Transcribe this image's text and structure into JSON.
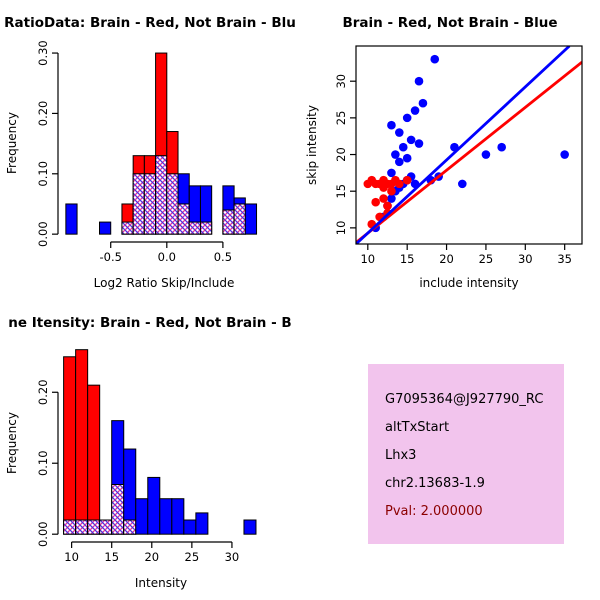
{
  "page": {
    "background": "#ffffff"
  },
  "colors": {
    "brain_red": "#FF0000",
    "not_brain_blue": "#0000FF",
    "axis_black": "#000000",
    "info_box_background": "#F2C4ED",
    "pval_dark_red": "#8B0000"
  },
  "chart_data": [
    {
      "id": "hist-log2ratio",
      "type": "bar",
      "subtype": "overlaid-histogram",
      "title": "RatioData: Brain - Red, Not Brain - Blu",
      "xlabel": "Log2 Ratio Skip/Include",
      "ylabel": "Frequency",
      "xlim": [
        -0.97,
        0.92
      ],
      "ylim": [
        -0.013,
        0.315
      ],
      "xticks": [
        -0.5,
        0.0,
        0.5
      ],
      "xtick_labels": [
        "-0.5",
        "0.0",
        "0.5"
      ],
      "yticks": [
        0.0,
        0.1,
        0.2,
        0.3
      ],
      "ytick_labels": [
        "0.00",
        "0.10",
        "0.20",
        "0.30"
      ],
      "grid": false,
      "legend": "none",
      "bin_start": -0.9,
      "bin_width": 0.1,
      "series": [
        {
          "name": "Brain (red)",
          "color": "#FF0000",
          "values": [
            0,
            0,
            0,
            0,
            0,
            0.05,
            0.13,
            0.13,
            0.3,
            0.17,
            0.05,
            0.02,
            0.02,
            0,
            0.04,
            0.05,
            0,
            0
          ]
        },
        {
          "name": "Not Brain (blue)",
          "color": "#0000FF",
          "values": [
            0.05,
            0,
            0,
            0.02,
            0,
            0.02,
            0.1,
            0.1,
            0.13,
            0.1,
            0.1,
            0.08,
            0.08,
            0,
            0.08,
            0.06,
            0.05,
            0
          ]
        }
      ]
    },
    {
      "id": "scatter-intensity",
      "type": "scatter",
      "title": "Brain - Red, Not Brain - Blue",
      "xlabel": "include intensity",
      "ylabel": "skip intensity",
      "xlim": [
        8.5,
        37.2
      ],
      "ylim": [
        7.8,
        34.8
      ],
      "xticks": [
        10,
        15,
        20,
        25,
        30,
        35
      ],
      "xtick_labels": [
        "10",
        "15",
        "20",
        "25",
        "30",
        "35"
      ],
      "yticks": [
        10,
        15,
        20,
        25,
        30
      ],
      "ytick_labels": [
        "10",
        "15",
        "20",
        "25",
        "30"
      ],
      "grid": false,
      "legend": "none",
      "series": [
        {
          "name": "Not Brain (blue)",
          "color": "#0000FF",
          "points": [
            [
              11,
              10
            ],
            [
              12,
              11.5
            ],
            [
              12.5,
              13
            ],
            [
              13,
              14
            ],
            [
              13.5,
              15
            ],
            [
              14,
              15.5
            ],
            [
              14.5,
              16
            ],
            [
              15,
              16.5
            ],
            [
              15.5,
              17
            ],
            [
              16,
              16
            ],
            [
              13,
              17.5
            ],
            [
              14,
              19
            ],
            [
              15,
              19.5
            ],
            [
              13.5,
              20
            ],
            [
              14.5,
              21
            ],
            [
              15.5,
              22
            ],
            [
              16.5,
              21.5
            ],
            [
              14,
              23
            ],
            [
              15,
              25
            ],
            [
              16,
              26
            ],
            [
              17,
              27
            ],
            [
              13,
              24
            ],
            [
              18,
              16.5
            ],
            [
              19,
              17
            ],
            [
              21,
              21
            ],
            [
              22,
              16
            ],
            [
              25,
              20
            ],
            [
              27,
              21
            ],
            [
              35,
              20
            ],
            [
              18.5,
              33
            ],
            [
              16.5,
              30
            ]
          ]
        },
        {
          "name": "Brain (red)",
          "color": "#FF0000",
          "points": [
            [
              10,
              16
            ],
            [
              10.5,
              16.5
            ],
            [
              11,
              16
            ],
            [
              11.5,
              16
            ],
            [
              12,
              16.5
            ],
            [
              12,
              15.5
            ],
            [
              12.5,
              16
            ],
            [
              13,
              16
            ],
            [
              13.5,
              16.5
            ],
            [
              14,
              16
            ],
            [
              11,
              13.5
            ],
            [
              12,
              14
            ],
            [
              12.5,
              13
            ],
            [
              11.5,
              11.5
            ],
            [
              12.5,
              12
            ],
            [
              10.5,
              10.5
            ],
            [
              13,
              15
            ],
            [
              15,
              16.5
            ]
          ]
        }
      ],
      "lines": [
        {
          "name": "brain-fit-line",
          "color": "#FF0000",
          "from": [
            8.5,
            8.0
          ],
          "to": [
            37.2,
            32.6
          ]
        },
        {
          "name": "not-brain-fit-line",
          "color": "#0000FF",
          "from": [
            8.5,
            7.8
          ],
          "to": [
            35.6,
            34.8
          ]
        }
      ]
    },
    {
      "id": "hist-intensity",
      "type": "bar",
      "subtype": "overlaid-histogram",
      "title": "ne Itensity: Brain - Red, Not Brain - B",
      "xlabel": "Intensity",
      "ylabel": "Frequency",
      "xlim": [
        8.3,
        34.0
      ],
      "ylim": [
        -0.011,
        0.268
      ],
      "xticks": [
        10,
        15,
        20,
        25,
        30
      ],
      "xtick_labels": [
        "10",
        "15",
        "20",
        "25",
        "30"
      ],
      "yticks": [
        0.0,
        0.1,
        0.2
      ],
      "ytick_labels": [
        "0.00",
        "0.10",
        "0.20"
      ],
      "grid": false,
      "legend": "none",
      "bin_start": 9,
      "bin_width": 1.5,
      "series": [
        {
          "name": "Brain (red)",
          "color": "#FF0000",
          "values": [
            0.25,
            0.26,
            0.21,
            0.02,
            0.07,
            0.02,
            0,
            0,
            0,
            0,
            0,
            0,
            0,
            0,
            0,
            0
          ]
        },
        {
          "name": "Not Brain (blue)",
          "color": "#0000FF",
          "values": [
            0.02,
            0.02,
            0.02,
            0.02,
            0.16,
            0.12,
            0.05,
            0.08,
            0.05,
            0.05,
            0.02,
            0.03,
            0,
            0,
            0,
            0.02
          ]
        }
      ]
    }
  ],
  "info_box": {
    "background": "#F2C4ED",
    "lines": [
      {
        "text": "G7095364@J927790_RC",
        "color": "#000000"
      },
      {
        "text": "altTxStart",
        "color": "#000000"
      },
      {
        "text": "Lhx3",
        "color": "#000000"
      },
      {
        "text": "chr2.13683-1.9",
        "color": "#000000"
      },
      {
        "text": "Pval: 2.000000",
        "color": "#8B0000"
      }
    ]
  }
}
